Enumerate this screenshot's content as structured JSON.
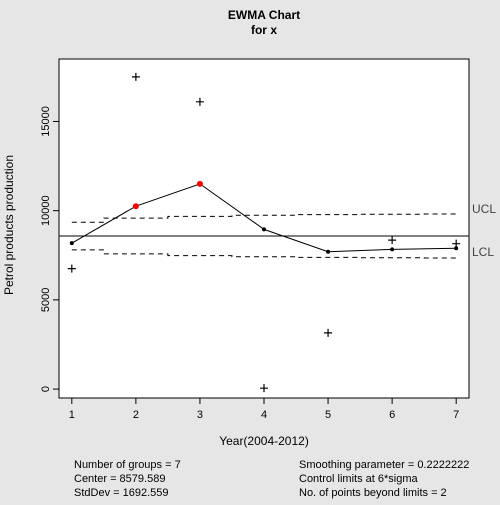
{
  "chart_data": {
    "type": "line",
    "title": "EWMA Chart",
    "subtitle": "for x",
    "xlabel": "Year(2004-2012)",
    "ylabel": "Petrol products production",
    "xlim": [
      0.8,
      7.2
    ],
    "ylim": [
      -500,
      18500
    ],
    "x_ticks": [
      1,
      2,
      3,
      4,
      5,
      6,
      7
    ],
    "y_ticks": [
      0,
      5000,
      10000,
      15000
    ],
    "grid": false,
    "center_line": 8579.589,
    "center_label": "Center = 8579.589",
    "stddev_label": "StdDev = 1692.559",
    "groups_label": "Number of groups = 7",
    "smoothing_label": "Smoothing parameter =  0.2222222",
    "control_limits_label": "Control limits at 6*sigma",
    "beyond_limits_label": "No. of points beyond limits = 2",
    "ucl_label": "UCL",
    "lcl_label": "LCL",
    "ucl": [
      9350,
      9580,
      9680,
      9740,
      9780,
      9800,
      9810
    ],
    "lcl": [
      7800,
      7580,
      7480,
      7420,
      7380,
      7360,
      7350
    ],
    "series": [
      {
        "name": "observations",
        "marker": "plus",
        "x": [
          1,
          2,
          3,
          4,
          5,
          6,
          7
        ],
        "values": [
          6750,
          17500,
          16100,
          50,
          3150,
          8350,
          8150
        ]
      },
      {
        "name": "ewma",
        "marker": "dot",
        "x": [
          1,
          2,
          3,
          4,
          5,
          6,
          7
        ],
        "values": [
          8180,
          10250,
          11500,
          8950,
          7700,
          7830,
          7890
        ],
        "out_of_limits": [
          false,
          true,
          true,
          false,
          false,
          false,
          false
        ]
      }
    ],
    "colors": {
      "out_of_limits": "#ff0000",
      "in_limits": "#000000",
      "plot_background": "#ffffff",
      "page_background": "#e6e6e6"
    }
  }
}
